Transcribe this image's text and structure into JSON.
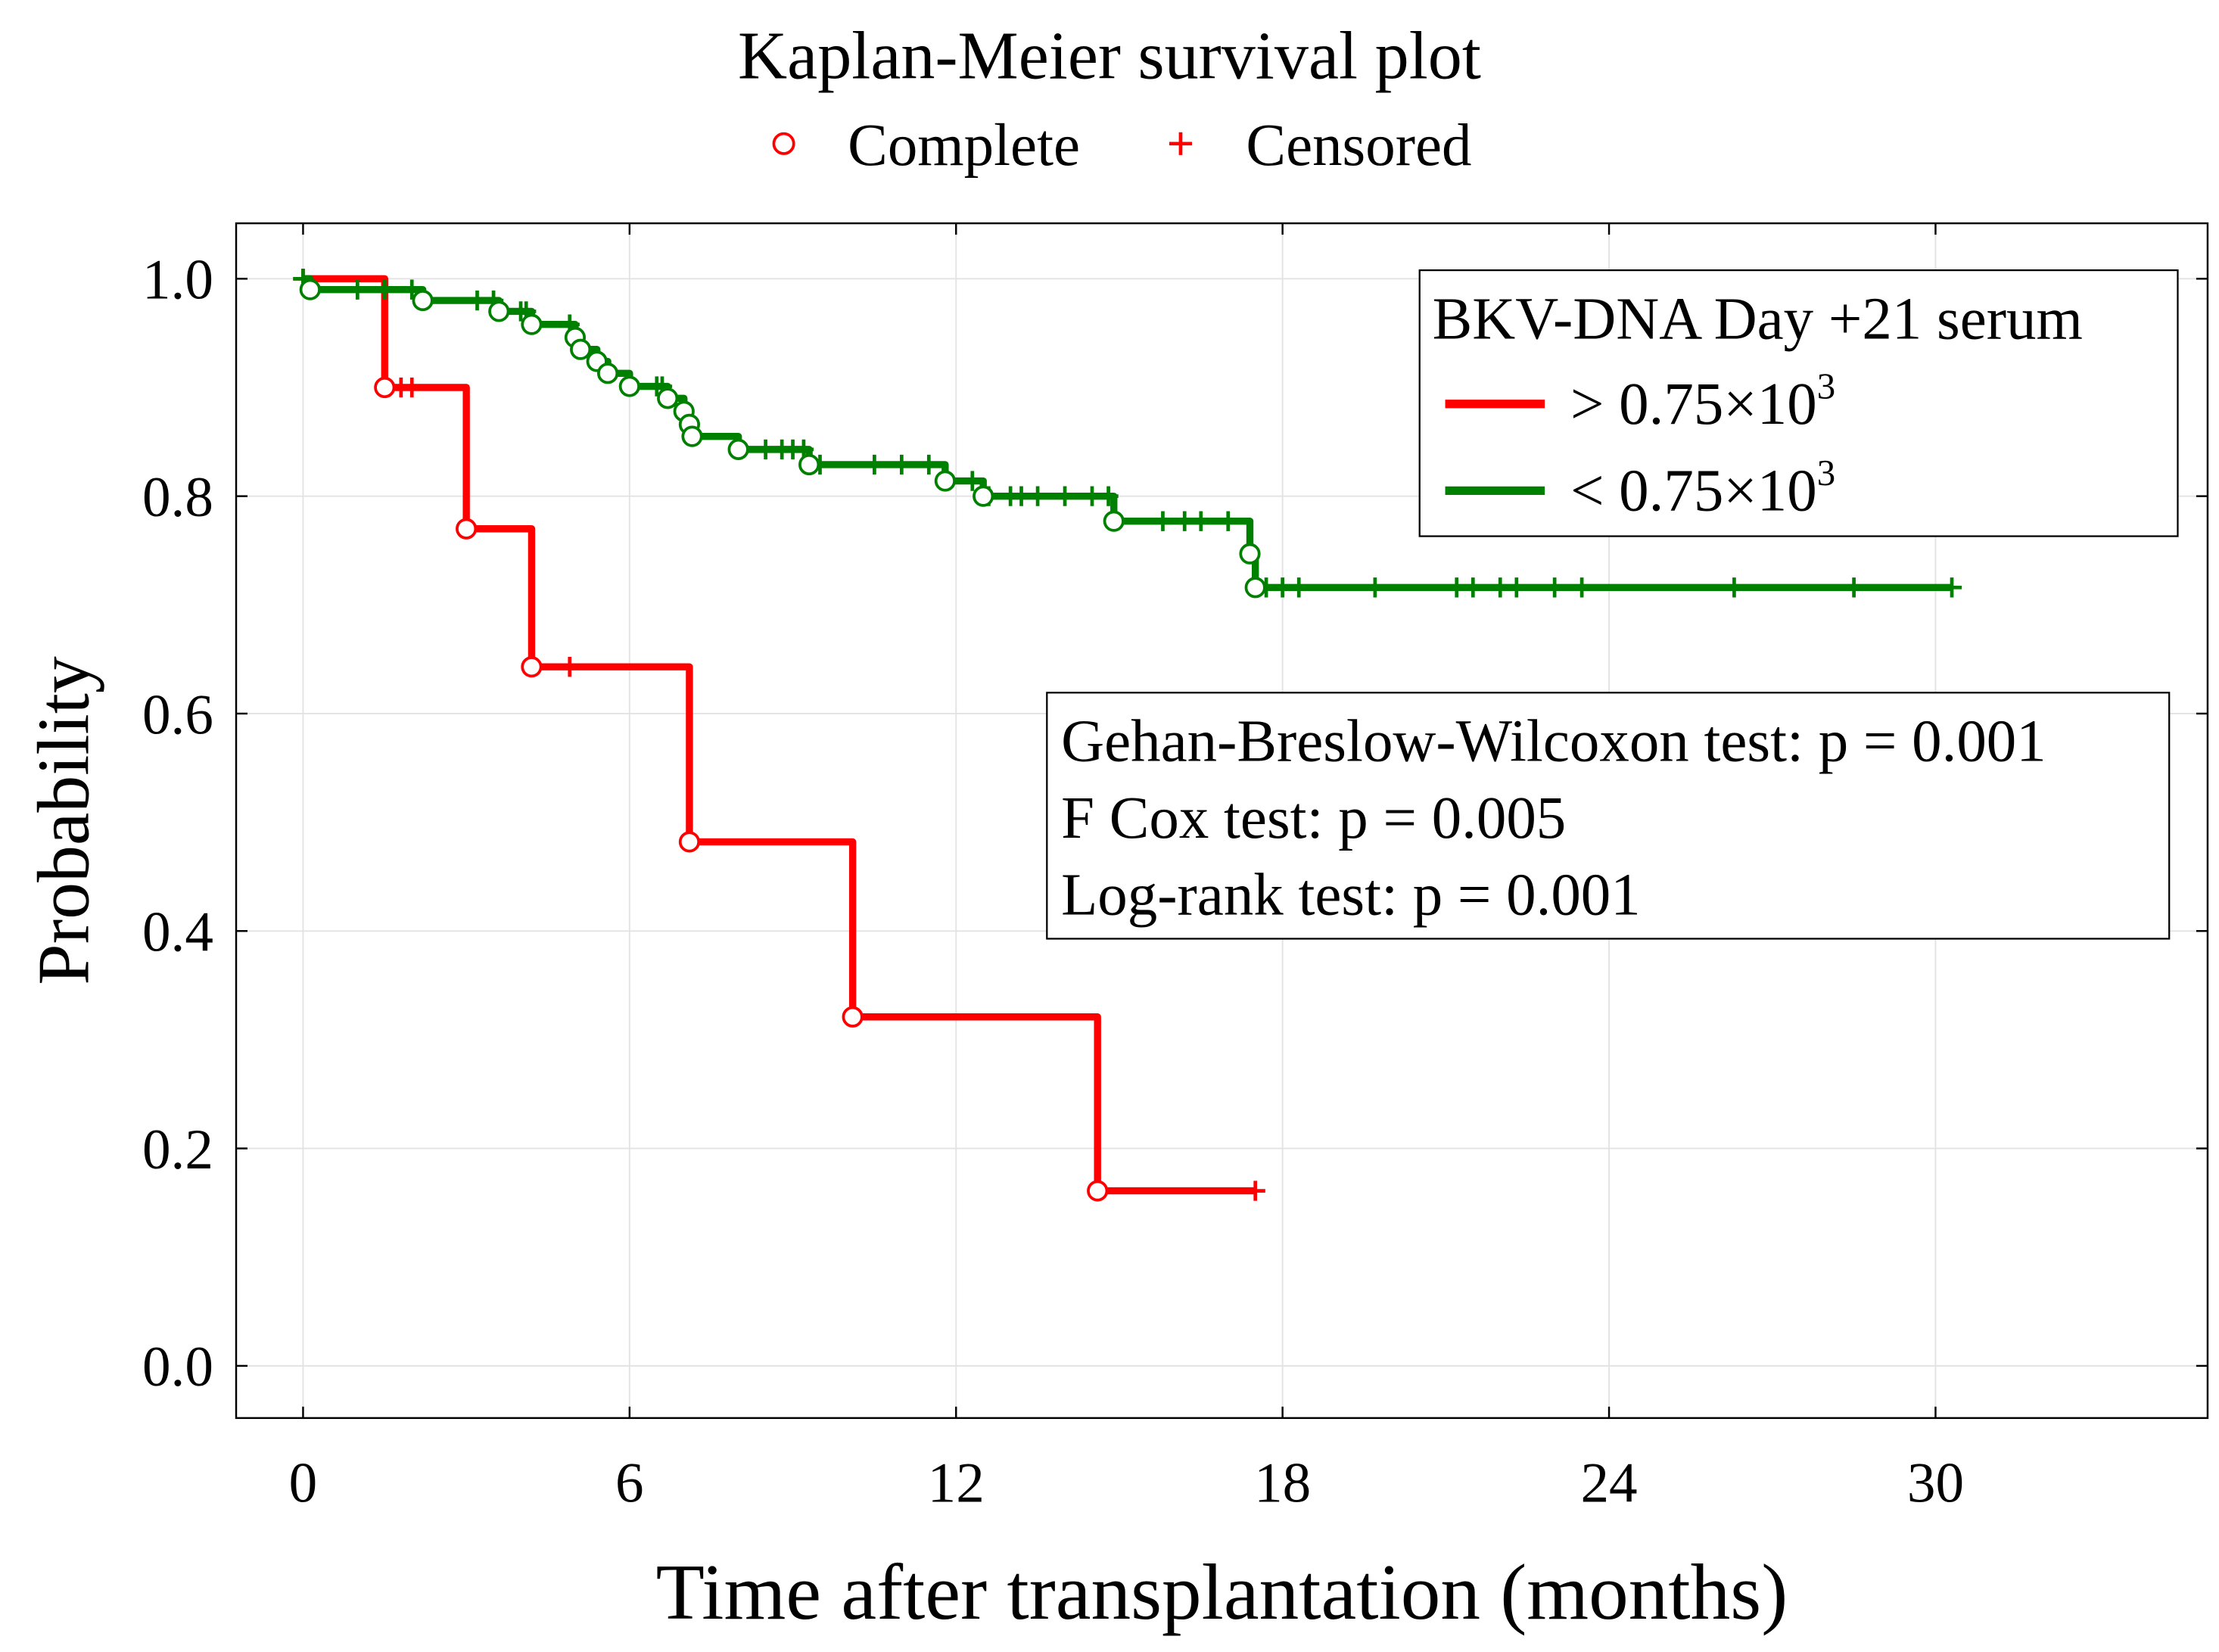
{
  "chart_data": {
    "type": "line",
    "subtype": "kaplan-meier step",
    "title": "Kaplan-Meier survival plot",
    "marker_legend": [
      {
        "label": "Complete",
        "symbol": "circle"
      },
      {
        "label": "Censored",
        "symbol": "plus"
      }
    ],
    "xlabel": "Time after transplantation (months)",
    "ylabel": "Probability",
    "xlim": [
      -1.23,
      35
    ],
    "ylim": [
      -0.048,
      1.051
    ],
    "xticks": [
      0,
      6,
      12,
      18,
      24,
      30
    ],
    "yticks": [
      "0.0",
      "0.2",
      "0.4",
      "0.6",
      "0.8",
      "1.0"
    ],
    "grid": true,
    "legend": {
      "title": "BKV-DNA Day +21 serum",
      "placement": "top-right",
      "entries": [
        {
          "prefix": "> 0.75×10",
          "sup": "3"
        },
        {
          "prefix": "< 0.75×10",
          "sup": "3"
        }
      ]
    },
    "annotations": [
      "Gehan-Breslow-Wilcoxon test: p = 0.001",
      "F Cox test: p = 0.005",
      "Log-rank test: p = 0.001"
    ],
    "series": [
      {
        "name": "> 0.75×10^3",
        "color": "#ff0000",
        "start": 1.0,
        "end_time": 17.5,
        "events": [
          [
            1.5,
            0.9
          ],
          [
            3.0,
            0.77
          ],
          [
            4.2,
            0.643
          ],
          [
            7.1,
            0.482
          ],
          [
            10.1,
            0.321
          ],
          [
            14.6,
            0.161
          ]
        ],
        "censored": [
          0,
          1.8,
          2.0,
          4.9,
          17.5
        ]
      },
      {
        "name": "< 0.75×10^3",
        "color": "#008000",
        "start": 1.0,
        "end_time": 30.3,
        "events": [
          [
            0.13,
            0.99
          ],
          [
            2.2,
            0.98
          ],
          [
            3.6,
            0.97
          ],
          [
            4.2,
            0.958
          ],
          [
            5.0,
            0.946
          ],
          [
            5.1,
            0.935
          ],
          [
            5.4,
            0.924
          ],
          [
            5.6,
            0.913
          ],
          [
            6.0,
            0.901
          ],
          [
            6.7,
            0.89
          ],
          [
            7.0,
            0.878
          ],
          [
            7.1,
            0.866
          ],
          [
            7.15,
            0.855
          ],
          [
            8.0,
            0.843
          ],
          [
            9.3,
            0.829
          ],
          [
            11.8,
            0.814
          ],
          [
            12.5,
            0.8
          ],
          [
            14.9,
            0.777
          ],
          [
            17.4,
            0.747
          ],
          [
            17.5,
            0.716
          ]
        ],
        "censored": [
          0,
          1.0,
          1.5,
          2.0,
          3.2,
          3.5,
          4.0,
          4.1,
          4.9,
          6.5,
          6.6,
          7.0,
          8.5,
          8.8,
          9.0,
          9.2,
          9.5,
          10.5,
          11.0,
          11.5,
          12.3,
          12.6,
          13.0,
          13.2,
          13.5,
          14.0,
          14.5,
          14.8,
          15.8,
          16.2,
          16.5,
          17.0,
          17.7,
          18.0,
          18.3,
          19.7,
          21.2,
          21.5,
          22.0,
          22.3,
          23.0,
          23.5,
          26.3,
          28.5,
          30.3
        ]
      }
    ]
  }
}
